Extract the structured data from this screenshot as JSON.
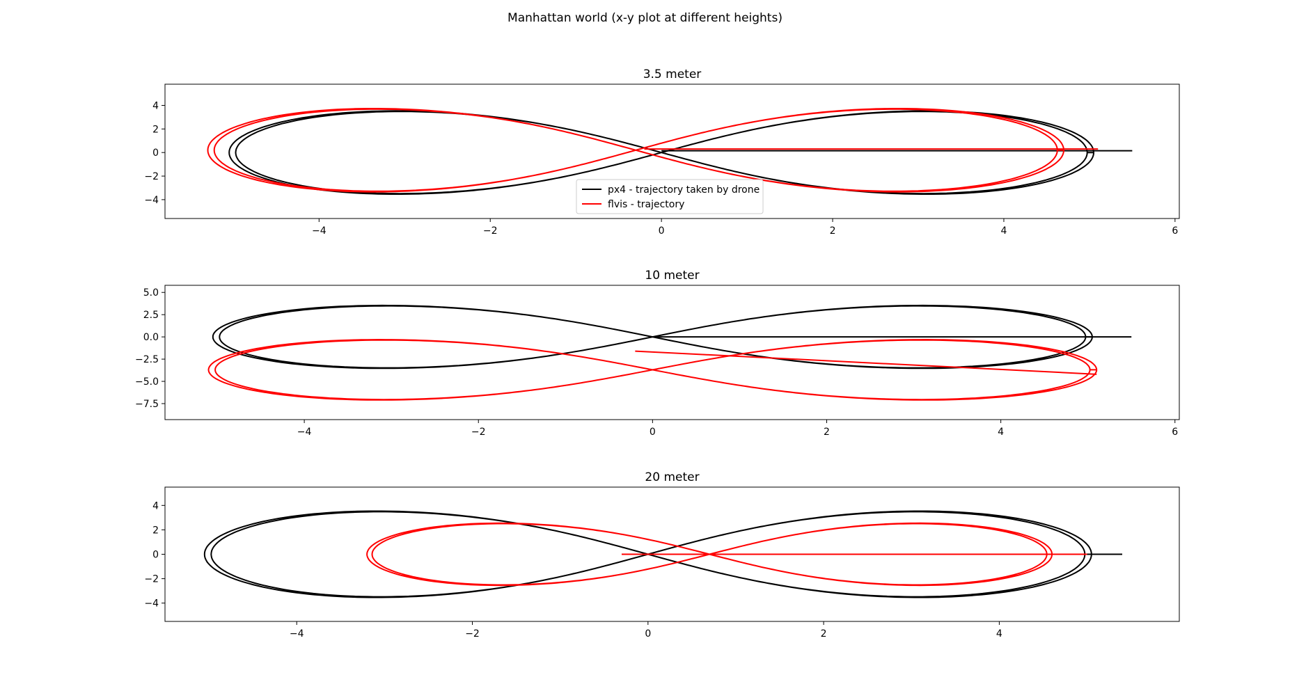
{
  "figure": {
    "title": "Manhattan world (x-y plot at different heights)"
  },
  "colors": {
    "px4": "#000000",
    "flvis": "#ff0000"
  },
  "chart_data": [
    {
      "type": "line",
      "title": "3.5 meter",
      "xlabel": "",
      "ylabel": "",
      "xlim": [
        -5.8,
        6.05
      ],
      "ylim": [
        -5.6,
        5.8
      ],
      "xticks": [
        -4,
        -2,
        0,
        2,
        4,
        6
      ],
      "yticks": [
        -4,
        -2,
        0,
        2,
        4
      ],
      "ytick_labels": [
        "−4",
        "−2",
        "0",
        "2",
        "4"
      ],
      "xtick_labels": [
        "−4",
        "−2",
        "0",
        "2",
        "4",
        "6"
      ],
      "legend": {
        "position": "lower-center",
        "entries": [
          "px4 - trajectory taken by drone",
          "flvis - trajectory"
        ]
      },
      "grid": false,
      "series": [
        {
          "name": "px4 - trajectory taken by drone",
          "color": "#000000",
          "shape": "figure-eight",
          "a": 5.05,
          "b": 5.0,
          "cx": 0.0,
          "cy": 0.0,
          "tail": {
            "from": [
              0.0,
              0.15
            ],
            "to": [
              5.5,
              0.15
            ]
          }
        },
        {
          "name": "flvis - trajectory",
          "color": "#ff0000",
          "shape": "figure-eight",
          "a": 5.0,
          "b": 5.0,
          "cx": -0.3,
          "cy": 0.2,
          "tail": {
            "from": [
              -0.2,
              0.3
            ],
            "to": [
              5.1,
              0.3
            ]
          }
        }
      ]
    },
    {
      "type": "line",
      "title": "10 meter",
      "xlabel": "",
      "ylabel": "",
      "xlim": [
        -5.6,
        6.05
      ],
      "ylim": [
        -9.3,
        5.8
      ],
      "xticks": [
        -4,
        -2,
        0,
        2,
        4,
        6
      ],
      "yticks": [
        5.0,
        2.5,
        0.0,
        -2.5,
        -5.0,
        -7.5
      ],
      "xtick_labels": [
        "−4",
        "−2",
        "0",
        "2",
        "4",
        "6"
      ],
      "ytick_labels": [
        "5.0",
        "2.5",
        "0.0",
        "−2.5",
        "−5.0",
        "−7.5"
      ],
      "grid": false,
      "series": [
        {
          "name": "px4 - trajectory taken by drone",
          "color": "#000000",
          "shape": "figure-eight",
          "a": 5.05,
          "b": 5.0,
          "cx": 0.0,
          "cy": 0.0,
          "tail": {
            "from": [
              0.0,
              0.0
            ],
            "to": [
              5.5,
              0.0
            ]
          }
        },
        {
          "name": "flvis - trajectory",
          "color": "#ff0000",
          "shape": "figure-eight",
          "a": 5.1,
          "b": 4.8,
          "cx": 0.0,
          "cy": -3.7,
          "tail": {
            "from": [
              -0.2,
              -1.6
            ],
            "to": [
              5.1,
              -4.2
            ]
          }
        }
      ]
    },
    {
      "type": "line",
      "title": "20 meter",
      "xlabel": "",
      "ylabel": "",
      "xlim": [
        -5.5,
        6.05
      ],
      "ylim": [
        -5.5,
        5.5
      ],
      "xticks": [
        -4,
        -2,
        0,
        2,
        4
      ],
      "yticks": [
        4,
        2,
        0,
        -2,
        -4
      ],
      "xtick_labels": [
        "−4",
        "−2",
        "0",
        "2",
        "4"
      ],
      "ytick_labels": [
        "4",
        "2",
        "0",
        "−2",
        "−4"
      ],
      "grid": false,
      "series": [
        {
          "name": "px4 - trajectory taken by drone",
          "color": "#000000",
          "shape": "figure-eight",
          "a": 5.05,
          "b": 5.0,
          "cx": 0.0,
          "cy": 0.0,
          "tail": {
            "from": [
              0.0,
              0.0
            ],
            "to": [
              5.4,
              0.0
            ]
          }
        },
        {
          "name": "flvis - trajectory",
          "color": "#ff0000",
          "shape": "figure-eight",
          "a": 3.9,
          "b": 3.6,
          "cx": 0.7,
          "cy": 0.0,
          "tail": {
            "from": [
              -0.3,
              0.0
            ],
            "to": [
              5.0,
              0.0
            ]
          }
        }
      ]
    }
  ]
}
